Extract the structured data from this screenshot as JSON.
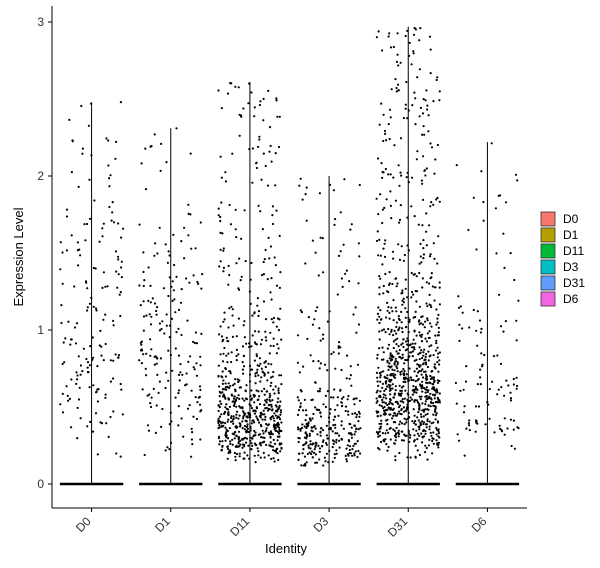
{
  "chart_data": {
    "type": "violin-jitter",
    "xlabel": "Identity",
    "ylabel": "Expression Level",
    "ylim": [
      -0.18,
      3.1
    ],
    "yticks": [
      0,
      1,
      2,
      3
    ],
    "categories": [
      "D0",
      "D1",
      "D11",
      "D3",
      "D31",
      "D6"
    ],
    "legend": {
      "placement": "right",
      "entries": [
        {
          "label": "D0",
          "color": "#F8766D"
        },
        {
          "label": "D1",
          "color": "#B79F00"
        },
        {
          "label": "D11",
          "color": "#00BA38"
        },
        {
          "label": "D3",
          "color": "#00BFC4"
        },
        {
          "label": "D31",
          "color": "#619CFF"
        },
        {
          "label": "D6",
          "color": "#F564E3"
        }
      ]
    },
    "series": [
      {
        "name": "D0",
        "max": 2.48,
        "n_points": 170,
        "median_nonzero": 1.0
      },
      {
        "name": "D1",
        "max": 2.31,
        "n_points": 190,
        "median_nonzero": 0.8
      },
      {
        "name": "D11",
        "max": 2.61,
        "n_points": 700,
        "median_nonzero": 0.45
      },
      {
        "name": "D3",
        "max": 2.0,
        "n_points": 330,
        "median_nonzero": 0.35
      },
      {
        "name": "D31",
        "max": 2.97,
        "n_points": 950,
        "median_nonzero": 0.65
      },
      {
        "name": "D6",
        "max": 2.22,
        "n_points": 110,
        "median_nonzero": 0.6
      }
    ]
  }
}
